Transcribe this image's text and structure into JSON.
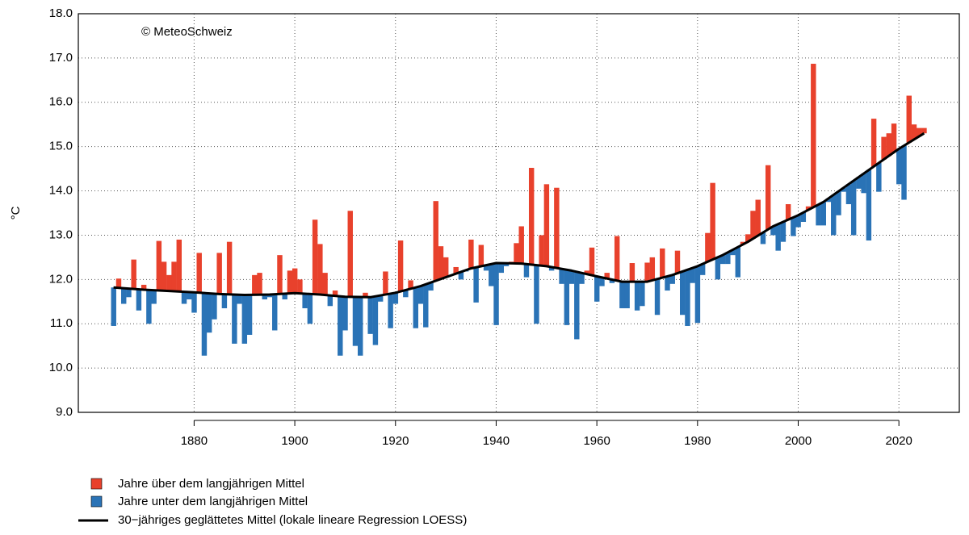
{
  "chart_data": {
    "type": "anomaly-bar",
    "annotation": "© MeteoSchweiz",
    "y_label": "°C",
    "x": [
      1864,
      1865,
      1866,
      1867,
      1868,
      1869,
      1870,
      1871,
      1872,
      1873,
      1874,
      1875,
      1876,
      1877,
      1878,
      1879,
      1880,
      1881,
      1882,
      1883,
      1884,
      1885,
      1886,
      1887,
      1888,
      1889,
      1890,
      1891,
      1892,
      1893,
      1894,
      1895,
      1896,
      1897,
      1898,
      1899,
      1900,
      1901,
      1902,
      1903,
      1904,
      1905,
      1906,
      1907,
      1908,
      1909,
      1910,
      1911,
      1912,
      1913,
      1914,
      1915,
      1916,
      1917,
      1918,
      1919,
      1920,
      1921,
      1922,
      1923,
      1924,
      1925,
      1926,
      1927,
      1928,
      1929,
      1930,
      1931,
      1932,
      1933,
      1934,
      1935,
      1936,
      1937,
      1938,
      1939,
      1940,
      1941,
      1942,
      1943,
      1944,
      1945,
      1946,
      1947,
      1948,
      1949,
      1950,
      1951,
      1952,
      1953,
      1954,
      1955,
      1956,
      1957,
      1958,
      1959,
      1960,
      1961,
      1962,
      1963,
      1964,
      1965,
      1966,
      1967,
      1968,
      1969,
      1970,
      1971,
      1972,
      1973,
      1974,
      1975,
      1976,
      1977,
      1978,
      1979,
      1980,
      1981,
      1982,
      1983,
      1984,
      1985,
      1986,
      1987,
      1988,
      1989,
      1990,
      1991,
      1992,
      1993,
      1994,
      1995,
      1996,
      1997,
      1998,
      1999,
      2000,
      2001,
      2002,
      2003,
      2004,
      2005,
      2006,
      2007,
      2008,
      2009,
      2010,
      2011,
      2012,
      2013,
      2014,
      2015,
      2016,
      2017,
      2018,
      2019,
      2020,
      2021,
      2022,
      2023,
      2024,
      2025
    ],
    "values": [
      10.95,
      12.02,
      11.45,
      11.6,
      12.45,
      11.3,
      11.88,
      11.0,
      11.45,
      12.87,
      12.4,
      12.1,
      12.4,
      12.9,
      11.45,
      11.55,
      11.25,
      12.6,
      10.28,
      10.8,
      11.1,
      12.6,
      11.35,
      12.85,
      10.55,
      11.45,
      10.55,
      10.75,
      12.1,
      12.15,
      11.55,
      11.6,
      10.85,
      12.55,
      11.55,
      12.2,
      12.25,
      12.0,
      11.35,
      11.0,
      13.35,
      12.8,
      12.15,
      11.4,
      11.75,
      10.28,
      10.85,
      13.55,
      10.5,
      10.28,
      11.7,
      10.77,
      10.52,
      11.5,
      12.18,
      10.9,
      11.45,
      12.88,
      11.6,
      11.98,
      10.9,
      11.45,
      10.92,
      11.75,
      13.77,
      12.75,
      12.5,
      12.1,
      12.28,
      12.0,
      12.18,
      12.9,
      11.48,
      12.78,
      12.2,
      11.85,
      10.97,
      12.15,
      12.3,
      12.4,
      12.82,
      13.2,
      12.05,
      14.52,
      11.0,
      13.0,
      14.15,
      12.2,
      14.07,
      11.9,
      10.97,
      11.9,
      10.65,
      11.9,
      12.2,
      12.72,
      11.5,
      11.85,
      12.15,
      11.92,
      12.98,
      11.35,
      11.35,
      12.37,
      11.3,
      11.4,
      12.38,
      12.5,
      11.2,
      12.7,
      11.75,
      11.9,
      12.65,
      11.2,
      10.95,
      11.92,
      11.02,
      12.1,
      13.05,
      14.18,
      12.0,
      12.35,
      12.35,
      12.55,
      12.05,
      12.85,
      13.02,
      13.55,
      13.8,
      12.8,
      14.58,
      13.0,
      12.65,
      12.85,
      13.7,
      12.98,
      13.18,
      13.3,
      13.65,
      16.87,
      13.22,
      13.22,
      13.75,
      13.0,
      13.45,
      13.98,
      13.7,
      13.0,
      14.05,
      13.95,
      12.88,
      15.63,
      13.98,
      15.22,
      15.3,
      15.52,
      14.15,
      13.8,
      16.15,
      15.5,
      15.42,
      15.42
    ],
    "above": {
      "name": "Jahre über dem langjährigen Mittel",
      "color": "#e8412c"
    },
    "below": {
      "name": "Jahre unter dem langjährigen Mittel",
      "color": "#2a73b6"
    },
    "smooth": {
      "name": "30−jähriges geglättetes Mittel (lokale lineare Regression LOESS)",
      "color": "#000000",
      "x": [
        1864,
        1870,
        1875,
        1880,
        1885,
        1890,
        1895,
        1900,
        1905,
        1910,
        1915,
        1920,
        1925,
        1930,
        1935,
        1940,
        1945,
        1950,
        1955,
        1960,
        1965,
        1970,
        1975,
        1980,
        1985,
        1990,
        1995,
        2000,
        2005,
        2010,
        2015,
        2020,
        2025
      ],
      "values": [
        11.82,
        11.77,
        11.74,
        11.71,
        11.67,
        11.65,
        11.66,
        11.69,
        11.66,
        11.61,
        11.6,
        11.7,
        11.85,
        12.05,
        12.25,
        12.37,
        12.36,
        12.3,
        12.2,
        12.07,
        11.95,
        11.95,
        12.1,
        12.3,
        12.55,
        12.85,
        13.2,
        13.45,
        13.75,
        14.15,
        14.55,
        14.95,
        15.3
      ]
    },
    "xlim": [
      1857,
      2032
    ],
    "ylim": [
      9,
      18
    ],
    "xticks": [
      1880,
      1900,
      1920,
      1940,
      1960,
      1980,
      2000,
      2020
    ],
    "yticks": [
      {
        "value": 9,
        "label": "9.0"
      },
      {
        "value": 10,
        "label": "10.0"
      },
      {
        "value": 11,
        "label": "11.0"
      },
      {
        "value": 12,
        "label": "12.0"
      },
      {
        "value": 13,
        "label": "13.0"
      },
      {
        "value": 14,
        "label": "14.0"
      },
      {
        "value": 15,
        "label": "15.0"
      },
      {
        "value": 16,
        "label": "16.0"
      },
      {
        "value": 17,
        "label": "17.0"
      },
      {
        "value": 18,
        "label": "18.0"
      }
    ],
    "grid": true
  }
}
